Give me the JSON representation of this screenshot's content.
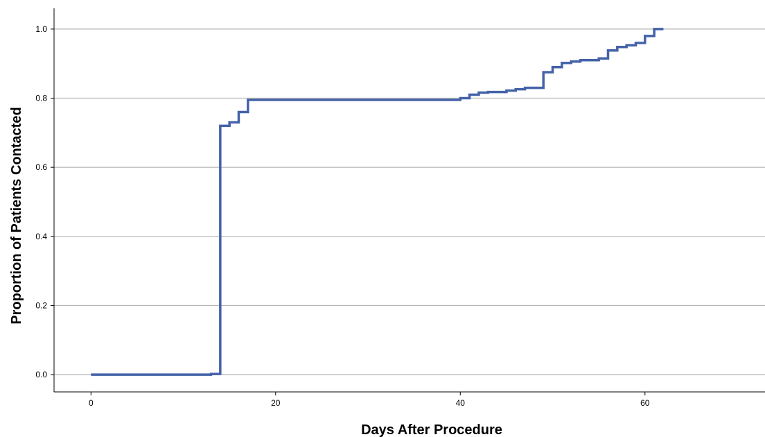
{
  "chart_data": {
    "type": "line",
    "step": true,
    "xlabel": "Days After Procedure",
    "ylabel": "Proportion of Patients Contacted",
    "xlim": [
      -4,
      73
    ],
    "ylim": [
      -0.05,
      1.06
    ],
    "x_ticks": [
      0,
      20,
      40,
      60
    ],
    "x_tick_labels": [
      "0",
      "20",
      "40",
      "60"
    ],
    "y_ticks": [
      0.0,
      0.2,
      0.4,
      0.6,
      0.8,
      1.0
    ],
    "y_tick_labels": [
      "0.0",
      "0.2",
      "0.4",
      "0.6",
      "0.8",
      "1.0"
    ],
    "grid": "horizontal",
    "line_color": "#4462a8",
    "series": [
      {
        "x": [
          0,
          13,
          14,
          15,
          16,
          17,
          40,
          41,
          42,
          43,
          45,
          46,
          47,
          49,
          50,
          51,
          52,
          53,
          55,
          56,
          57,
          58,
          59,
          60,
          61,
          62
        ],
        "y": [
          0.0,
          0.002,
          0.72,
          0.73,
          0.76,
          0.795,
          0.8,
          0.81,
          0.816,
          0.818,
          0.822,
          0.826,
          0.83,
          0.875,
          0.89,
          0.902,
          0.906,
          0.91,
          0.915,
          0.938,
          0.948,
          0.953,
          0.96,
          0.98,
          1.0,
          1.0
        ]
      }
    ]
  }
}
